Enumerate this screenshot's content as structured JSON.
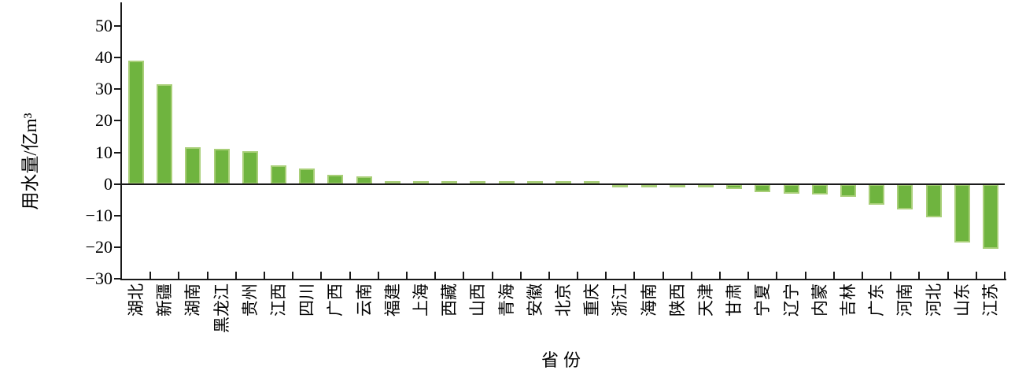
{
  "chart_data": {
    "type": "bar",
    "title": "",
    "xlabel": "省份",
    "ylabel": "用水量/亿m³",
    "categories": [
      "湖北",
      "新疆",
      "湖南",
      "黑龙江",
      "贵州",
      "江西",
      "四川",
      "广西",
      "云南",
      "福建",
      "上海",
      "西藏",
      "山西",
      "青海",
      "安徽",
      "北京",
      "重庆",
      "浙江",
      "海南",
      "陕西",
      "天津",
      "甘肃",
      "宁夏",
      "辽宁",
      "内蒙",
      "吉林",
      "广东",
      "河南",
      "河北",
      "山东",
      "江苏"
    ],
    "values": [
      39,
      31.5,
      11.5,
      11,
      10.3,
      6,
      5,
      3,
      2.5,
      1,
      0.8,
      0.6,
      0.5,
      0.5,
      0.4,
      0.3,
      0.2,
      -0.1,
      -0.3,
      -0.5,
      -0.7,
      -1.5,
      -2.5,
      -3,
      -3.3,
      -4,
      -6.5,
      -8,
      -10.5,
      -18.5,
      -20.5
    ],
    "ylim": [
      -30,
      50
    ],
    "ytick_values": [
      50,
      40,
      30,
      20,
      10,
      0,
      -10,
      -20,
      -30
    ],
    "ytick_labels": [
      "50",
      "40",
      "30",
      "20",
      "10",
      "0",
      "−10",
      "−20",
      "−30"
    ],
    "grid": false,
    "legend": "none",
    "bar_color": "#6fb43f",
    "bar_border_color": "#a9cf79",
    "axis_color": "#1a1a1a",
    "background_color": "#ffffff"
  }
}
